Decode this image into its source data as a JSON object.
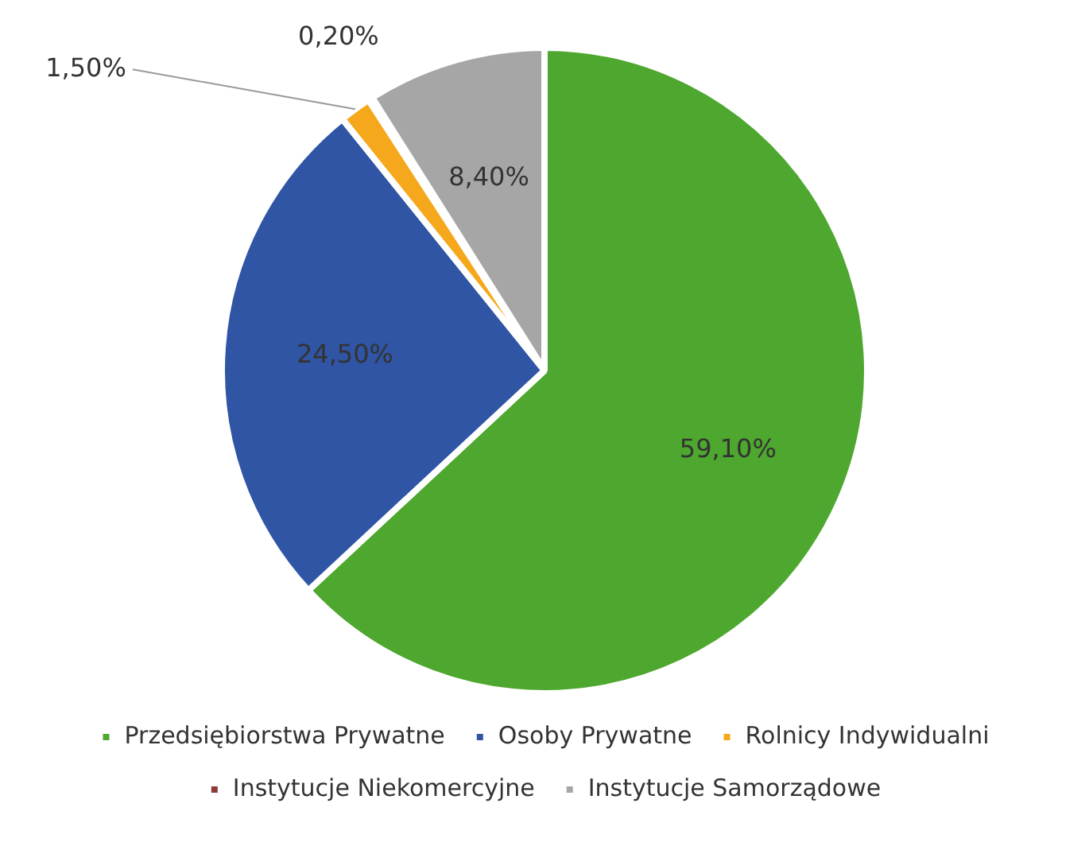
{
  "chart_data": {
    "type": "pie",
    "categories": [
      "Przedsiębiorstwa Prywatne",
      "Osoby Prywatne",
      "Rolnicy Indywidualni",
      "Instytucje Niekomercyjne",
      "Instytucje Samorządowe"
    ],
    "values": [
      59.1,
      24.5,
      1.5,
      0.2,
      8.4
    ],
    "colors": [
      "#4ea72e",
      "#2f55a4",
      "#f5a81c",
      "#8c3b3b",
      "#a6a6a6"
    ],
    "value_labels": [
      "59,10%",
      "24,50%",
      "1,50%",
      "0,20%",
      "8,40%"
    ],
    "legend": "bottom"
  }
}
